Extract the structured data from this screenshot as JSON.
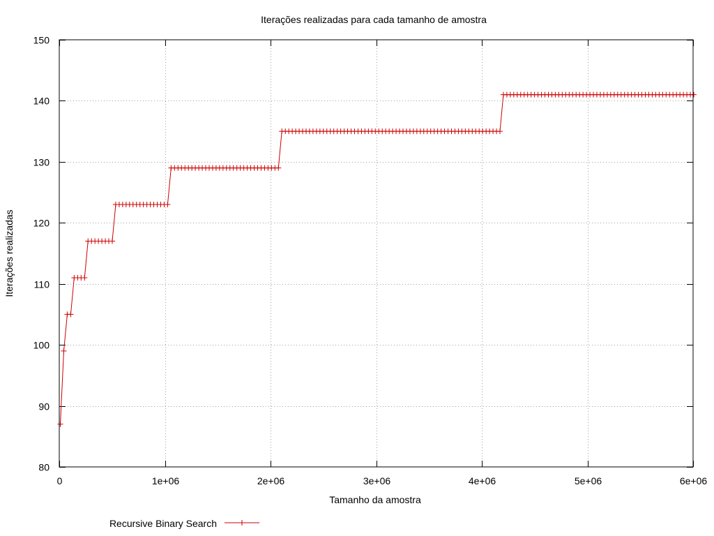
{
  "chart_data": {
    "type": "line",
    "title": "Iterações realizadas para cada tamanho de amostra",
    "xlabel": "Tamanho da amostra",
    "ylabel": "Iterações realizadas",
    "xlim": [
      0,
      6000000
    ],
    "ylim": [
      80,
      150
    ],
    "x_ticks": [
      {
        "value": 0,
        "label": "0"
      },
      {
        "value": 1000000,
        "label": "1e+06"
      },
      {
        "value": 2000000,
        "label": "2e+06"
      },
      {
        "value": 3000000,
        "label": "3e+06"
      },
      {
        "value": 4000000,
        "label": "4e+06"
      },
      {
        "value": 5000000,
        "label": "5e+06"
      },
      {
        "value": 6000000,
        "label": "6e+06"
      }
    ],
    "y_ticks": [
      {
        "value": 80,
        "label": "80"
      },
      {
        "value": 90,
        "label": "90"
      },
      {
        "value": 100,
        "label": "100"
      },
      {
        "value": 110,
        "label": "110"
      },
      {
        "value": 120,
        "label": "120"
      },
      {
        "value": 130,
        "label": "130"
      },
      {
        "value": 140,
        "label": "140"
      },
      {
        "value": 150,
        "label": "150"
      }
    ],
    "grid": true,
    "legend_position": "bottom-left",
    "series": [
      {
        "name": "Recursive Binary Search",
        "color": "#cc0000",
        "marker": "plus",
        "x_start": 10000,
        "x_step": 32768,
        "segments": [
          {
            "value": 87,
            "count": 1
          },
          {
            "value": 99,
            "count": 1
          },
          {
            "value": 105,
            "count": 2
          },
          {
            "value": 111,
            "count": 4
          },
          {
            "value": 117,
            "count": 8
          },
          {
            "value": 123,
            "count": 16
          },
          {
            "value": 129,
            "count": 32
          },
          {
            "value": 135,
            "count": 64
          },
          {
            "value": 141,
            "count": 56
          }
        ]
      }
    ]
  }
}
